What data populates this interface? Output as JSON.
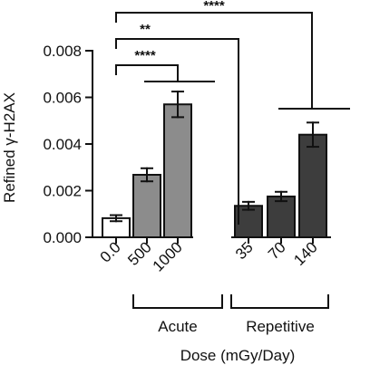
{
  "chart_data": {
    "type": "bar",
    "title": "",
    "ylabel": "Refined γ-H2AX",
    "xlabel": "Dose (mGy/Day)",
    "ylim": [
      0,
      0.008
    ],
    "yticks": [
      0,
      0.002,
      0.004,
      0.006,
      0.008
    ],
    "ytick_labels": [
      "0.000",
      "0.002",
      "0.004",
      "0.006",
      "0.008"
    ],
    "categories": [
      "0.0",
      "500",
      "1000",
      "35",
      "70",
      "140"
    ],
    "values": [
      0.00082,
      0.00268,
      0.0057,
      0.00135,
      0.00175,
      0.0044
    ],
    "errors": [
      0.00013,
      0.00028,
      0.00055,
      0.00017,
      0.0002,
      0.00052
    ],
    "colors": [
      "#ffffff",
      "#8c8c8c",
      "#8c8c8c",
      "#3d3d3d",
      "#3d3d3d",
      "#3d3d3d"
    ],
    "groups": [
      {
        "label": "Acute",
        "categories": [
          "500",
          "1000"
        ]
      },
      {
        "label": "Repetitive",
        "categories": [
          "35",
          "70",
          "140"
        ]
      }
    ],
    "significance": [
      {
        "label": "****",
        "from": "0.0",
        "to": "Acute"
      },
      {
        "label": "**",
        "from": "0.0",
        "to": "Repetitive"
      },
      {
        "label": "****",
        "from": "0.0",
        "to": "Repetitive"
      }
    ],
    "grid": false,
    "legend": "none"
  }
}
